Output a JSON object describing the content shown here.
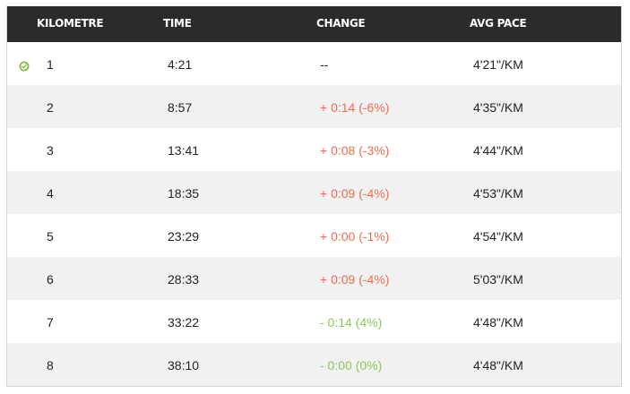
{
  "table": {
    "headers": {
      "kilometre": "KILOMETRE",
      "time": "TIME",
      "change": "CHANGE",
      "avg_pace": "AVG PACE"
    },
    "rows": [
      {
        "km": "1",
        "time": "4:21",
        "change": "--",
        "change_type": "neutral",
        "pace": "4'21\"/KM",
        "marked": true
      },
      {
        "km": "2",
        "time": "8:57",
        "change": "+ 0:14 (-6%)",
        "change_type": "slower",
        "pace": "4'35\"/KM"
      },
      {
        "km": "3",
        "time": "13:41",
        "change": "+ 0:08 (-3%)",
        "change_type": "slower",
        "pace": "4'44\"/KM"
      },
      {
        "km": "4",
        "time": "18:35",
        "change": "+ 0:09 (-4%)",
        "change_type": "slower",
        "pace": "4'53\"/KM"
      },
      {
        "km": "5",
        "time": "23:29",
        "change": "+ 0:00 (-1%)",
        "change_type": "slower",
        "pace": "4'54\"/KM"
      },
      {
        "km": "6",
        "time": "28:33",
        "change": "+ 0:09 (-4%)",
        "change_type": "slower",
        "pace": "5'03\"/KM"
      },
      {
        "km": "7",
        "time": "33:22",
        "change": "- 0:14 (4%)",
        "change_type": "faster",
        "pace": "4'48\"/KM"
      },
      {
        "km": "8",
        "time": "38:10",
        "change": "- 0:00 (0%)",
        "change_type": "faster",
        "pace": "4'48\"/KM"
      }
    ]
  },
  "colors": {
    "header_bg": "#2b2b2b",
    "slower": "#ef6a4c",
    "faster": "#86c957",
    "marker": "#7cc142",
    "row_alt": "#f1f1f1"
  },
  "icons": {
    "row_marker": "check-circle-icon"
  }
}
